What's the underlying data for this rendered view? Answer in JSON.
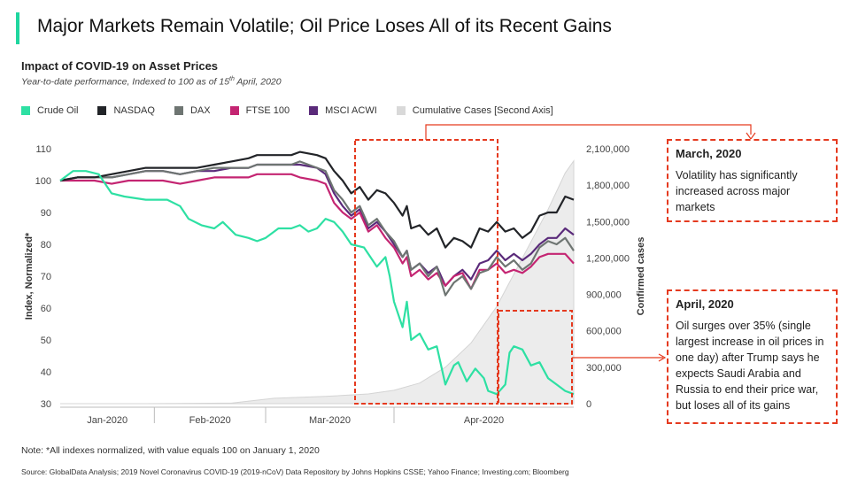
{
  "header": {
    "title": "Major Markets Remain Volatile; Oil Price Loses All of its Recent Gains",
    "accent_color": "#1fd69f"
  },
  "chart_data": {
    "type": "line",
    "title": "Impact of COVID-19 on Asset Prices",
    "subtitle": "Year-to-date performance, Indexed to 100 as of 15th April, 2020",
    "ylabel": "Index, Normalized*",
    "y2label": "Confirmed cases",
    "ylim": [
      30,
      110
    ],
    "y2lim": [
      0,
      2100000
    ],
    "yticks": [
      "30",
      "40",
      "50",
      "60",
      "70",
      "80",
      "90",
      "100",
      "110"
    ],
    "y2ticks": [
      "0",
      "300,000",
      "600,000",
      "900,000",
      "1,200,000",
      "1,500,000",
      "1,800,000",
      "2,100,000"
    ],
    "xticks": [
      "Jan-2020",
      "Feb-2020",
      "Mar-2020",
      "Apr-2020"
    ],
    "grid": false,
    "legend_position": "top",
    "series": [
      {
        "name": "Crude Oil",
        "color": "#2ee0a3",
        "values": [
          [
            0,
            100
          ],
          [
            3,
            103
          ],
          [
            6,
            103
          ],
          [
            9,
            102
          ],
          [
            12,
            96
          ],
          [
            15,
            95
          ],
          [
            20,
            94
          ],
          [
            25,
            94
          ],
          [
            28,
            92
          ],
          [
            30,
            88
          ],
          [
            33,
            86
          ],
          [
            36,
            85
          ],
          [
            38,
            87
          ],
          [
            41,
            83
          ],
          [
            44,
            82
          ],
          [
            46,
            81
          ],
          [
            48,
            82
          ],
          [
            51,
            85
          ],
          [
            54,
            85
          ],
          [
            56,
            86
          ],
          [
            58,
            84
          ],
          [
            60,
            85
          ],
          [
            62,
            88
          ],
          [
            64,
            87
          ],
          [
            66,
            84
          ],
          [
            68,
            80
          ],
          [
            71,
            79
          ],
          [
            74,
            73
          ],
          [
            76,
            76
          ],
          [
            77,
            70
          ],
          [
            78,
            62
          ],
          [
            80,
            54
          ],
          [
            81,
            62
          ],
          [
            82,
            50
          ],
          [
            84,
            52
          ],
          [
            86,
            47
          ],
          [
            88,
            48
          ],
          [
            90,
            36
          ],
          [
            92,
            42
          ],
          [
            93,
            43
          ],
          [
            95,
            37
          ],
          [
            97,
            41
          ],
          [
            99,
            38
          ],
          [
            100,
            34
          ],
          [
            102,
            33
          ],
          [
            104,
            36
          ],
          [
            105,
            46
          ],
          [
            106,
            48
          ],
          [
            108,
            47
          ],
          [
            110,
            42
          ],
          [
            112,
            43
          ],
          [
            114,
            38
          ],
          [
            116,
            36
          ],
          [
            118,
            34
          ],
          [
            120,
            33
          ]
        ]
      },
      {
        "name": "NASDAQ",
        "color": "#222428",
        "values": [
          [
            0,
            100
          ],
          [
            4,
            101
          ],
          [
            8,
            101
          ],
          [
            12,
            102
          ],
          [
            16,
            103
          ],
          [
            20,
            104
          ],
          [
            24,
            104
          ],
          [
            28,
            104
          ],
          [
            32,
            104
          ],
          [
            36,
            105
          ],
          [
            40,
            106
          ],
          [
            44,
            107
          ],
          [
            46,
            108
          ],
          [
            50,
            108
          ],
          [
            54,
            108
          ],
          [
            56,
            109
          ],
          [
            60,
            108
          ],
          [
            62,
            107
          ],
          [
            64,
            103
          ],
          [
            66,
            100
          ],
          [
            68,
            96
          ],
          [
            70,
            98
          ],
          [
            72,
            94
          ],
          [
            74,
            97
          ],
          [
            76,
            96
          ],
          [
            78,
            93
          ],
          [
            80,
            89
          ],
          [
            81,
            92
          ],
          [
            82,
            85
          ],
          [
            84,
            86
          ],
          [
            86,
            83
          ],
          [
            88,
            85
          ],
          [
            90,
            79
          ],
          [
            92,
            82
          ],
          [
            94,
            81
          ],
          [
            96,
            79
          ],
          [
            98,
            85
          ],
          [
            100,
            84
          ],
          [
            102,
            87
          ],
          [
            104,
            84
          ],
          [
            106,
            85
          ],
          [
            108,
            82
          ],
          [
            110,
            84
          ],
          [
            112,
            89
          ],
          [
            114,
            90
          ],
          [
            116,
            90
          ],
          [
            118,
            95
          ],
          [
            120,
            94
          ]
        ]
      },
      {
        "name": "DAX",
        "color": "#6e7572",
        "values": [
          [
            0,
            100
          ],
          [
            4,
            101
          ],
          [
            8,
            101
          ],
          [
            12,
            101
          ],
          [
            16,
            102
          ],
          [
            20,
            103
          ],
          [
            24,
            103
          ],
          [
            28,
            102
          ],
          [
            32,
            103
          ],
          [
            36,
            104
          ],
          [
            40,
            104
          ],
          [
            44,
            104
          ],
          [
            46,
            105
          ],
          [
            50,
            105
          ],
          [
            54,
            105
          ],
          [
            56,
            106
          ],
          [
            60,
            104
          ],
          [
            62,
            103
          ],
          [
            64,
            97
          ],
          [
            66,
            94
          ],
          [
            68,
            90
          ],
          [
            70,
            92
          ],
          [
            72,
            86
          ],
          [
            74,
            88
          ],
          [
            76,
            84
          ],
          [
            78,
            81
          ],
          [
            80,
            76
          ],
          [
            81,
            78
          ],
          [
            82,
            72
          ],
          [
            84,
            74
          ],
          [
            86,
            70
          ],
          [
            88,
            73
          ],
          [
            90,
            64
          ],
          [
            92,
            68
          ],
          [
            94,
            70
          ],
          [
            96,
            66
          ],
          [
            98,
            71
          ],
          [
            100,
            72
          ],
          [
            102,
            76
          ],
          [
            104,
            73
          ],
          [
            106,
            75
          ],
          [
            108,
            72
          ],
          [
            110,
            74
          ],
          [
            112,
            79
          ],
          [
            114,
            81
          ],
          [
            116,
            80
          ],
          [
            118,
            82
          ],
          [
            120,
            78
          ]
        ]
      },
      {
        "name": "FTSE 100",
        "color": "#c42572",
        "values": [
          [
            0,
            100
          ],
          [
            4,
            100
          ],
          [
            8,
            100
          ],
          [
            12,
            99
          ],
          [
            16,
            100
          ],
          [
            20,
            100
          ],
          [
            24,
            100
          ],
          [
            28,
            99
          ],
          [
            32,
            100
          ],
          [
            36,
            101
          ],
          [
            40,
            101
          ],
          [
            44,
            101
          ],
          [
            46,
            102
          ],
          [
            50,
            102
          ],
          [
            54,
            102
          ],
          [
            56,
            101
          ],
          [
            60,
            100
          ],
          [
            62,
            99
          ],
          [
            64,
            93
          ],
          [
            66,
            90
          ],
          [
            68,
            88
          ],
          [
            70,
            90
          ],
          [
            72,
            84
          ],
          [
            74,
            86
          ],
          [
            76,
            82
          ],
          [
            78,
            79
          ],
          [
            80,
            74
          ],
          [
            81,
            76
          ],
          [
            82,
            70
          ],
          [
            84,
            72
          ],
          [
            86,
            69
          ],
          [
            88,
            71
          ],
          [
            90,
            67
          ],
          [
            92,
            70
          ],
          [
            94,
            71
          ],
          [
            96,
            66
          ],
          [
            98,
            72
          ],
          [
            100,
            72
          ],
          [
            102,
            74
          ],
          [
            104,
            71
          ],
          [
            106,
            72
          ],
          [
            108,
            71
          ],
          [
            110,
            73
          ],
          [
            112,
            76
          ],
          [
            114,
            77
          ],
          [
            116,
            77
          ],
          [
            118,
            77
          ],
          [
            120,
            74
          ]
        ]
      },
      {
        "name": "MSCI ACWI",
        "color": "#5a2a7a",
        "values": [
          [
            0,
            100
          ],
          [
            4,
            101
          ],
          [
            8,
            101
          ],
          [
            12,
            101
          ],
          [
            16,
            102
          ],
          [
            20,
            103
          ],
          [
            24,
            103
          ],
          [
            28,
            102
          ],
          [
            32,
            103
          ],
          [
            36,
            103
          ],
          [
            40,
            104
          ],
          [
            44,
            104
          ],
          [
            46,
            105
          ],
          [
            50,
            105
          ],
          [
            54,
            105
          ],
          [
            56,
            105
          ],
          [
            60,
            104
          ],
          [
            62,
            102
          ],
          [
            64,
            96
          ],
          [
            66,
            92
          ],
          [
            68,
            89
          ],
          [
            70,
            91
          ],
          [
            72,
            85
          ],
          [
            74,
            87
          ],
          [
            76,
            84
          ],
          [
            78,
            80
          ],
          [
            80,
            76
          ],
          [
            81,
            78
          ],
          [
            82,
            72
          ],
          [
            84,
            74
          ],
          [
            86,
            71
          ],
          [
            88,
            73
          ],
          [
            90,
            67
          ],
          [
            92,
            70
          ],
          [
            94,
            72
          ],
          [
            96,
            69
          ],
          [
            98,
            74
          ],
          [
            100,
            75
          ],
          [
            102,
            78
          ],
          [
            104,
            75
          ],
          [
            106,
            77
          ],
          [
            108,
            75
          ],
          [
            110,
            77
          ],
          [
            112,
            80
          ],
          [
            114,
            82
          ],
          [
            116,
            82
          ],
          [
            118,
            85
          ],
          [
            120,
            83
          ]
        ]
      },
      {
        "name": "Cumulative Cases [Second Axis]",
        "color": "#e2e2e2",
        "values": [
          [
            0,
            0
          ],
          [
            20,
            0
          ],
          [
            40,
            5000
          ],
          [
            50,
            45000
          ],
          [
            62,
            60000
          ],
          [
            72,
            80000
          ],
          [
            78,
            110000
          ],
          [
            84,
            170000
          ],
          [
            90,
            300000
          ],
          [
            96,
            500000
          ],
          [
            102,
            800000
          ],
          [
            108,
            1200000
          ],
          [
            114,
            1600000
          ],
          [
            118,
            1900000
          ],
          [
            120,
            2000000
          ]
        ]
      }
    ]
  },
  "legend": {
    "items": [
      {
        "label": "Crude Oil",
        "color": "#2ee0a3"
      },
      {
        "label": "NASDAQ",
        "color": "#222428"
      },
      {
        "label": "DAX",
        "color": "#6e7572"
      },
      {
        "label": "FTSE 100",
        "color": "#c42572"
      },
      {
        "label": "MSCI ACWI",
        "color": "#5a2a7a"
      },
      {
        "label": "Cumulative Cases [Second Axis]",
        "color": "#d9d9d9"
      }
    ]
  },
  "callouts": {
    "march": {
      "title": "March, 2020",
      "text": "Volatility has significantly increased across major markets"
    },
    "april": {
      "title": "April, 2020",
      "text": "Oil surges over 35% (single largest increase in oil prices in one day) after Trump says he expects Saudi Arabia and Russia to end their price war, but loses all of its gains"
    },
    "color": "#e53a1f"
  },
  "footer": {
    "note": "Note: *All indexes normalized, with value equals 100 on January 1, 2020",
    "source": "Source: GlobalData Analysis; 2019 Novel Coronavirus COVID-19 (2019-nCoV) Data Repository by Johns Hopkins CSSE; Yahoo Finance; Investing.com; Bloomberg"
  }
}
